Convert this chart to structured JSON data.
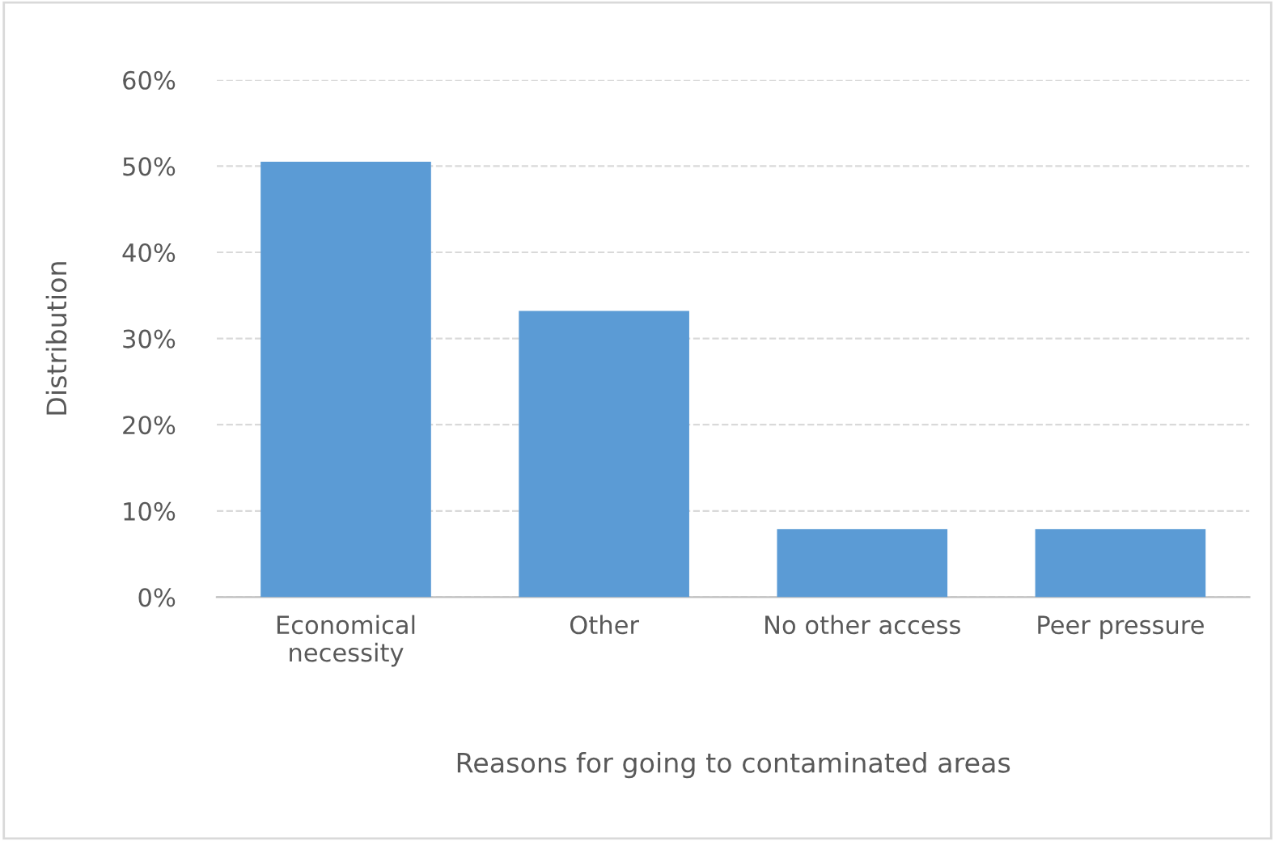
{
  "chart_data": {
    "type": "bar",
    "xlabel": "Reasons for going to contaminated areas",
    "ylabel": "Distribution",
    "categories": [
      "Economical\nnecessity",
      "Other",
      "No other access",
      "Peer pressure"
    ],
    "values": [
      50.5,
      33.2,
      7.9,
      7.9
    ],
    "color": "#5b9bd5",
    "ylim": [
      0,
      60
    ],
    "yticks": [
      {
        "value": 0,
        "label": "0%"
      },
      {
        "value": 10,
        "label": "10%"
      },
      {
        "value": 20,
        "label": "20%"
      },
      {
        "value": 30,
        "label": "30%"
      },
      {
        "value": 40,
        "label": "40%"
      },
      {
        "value": 50,
        "label": "50%"
      },
      {
        "value": 60,
        "label": "60%"
      }
    ],
    "grid": "y",
    "line_style": "dashed"
  }
}
